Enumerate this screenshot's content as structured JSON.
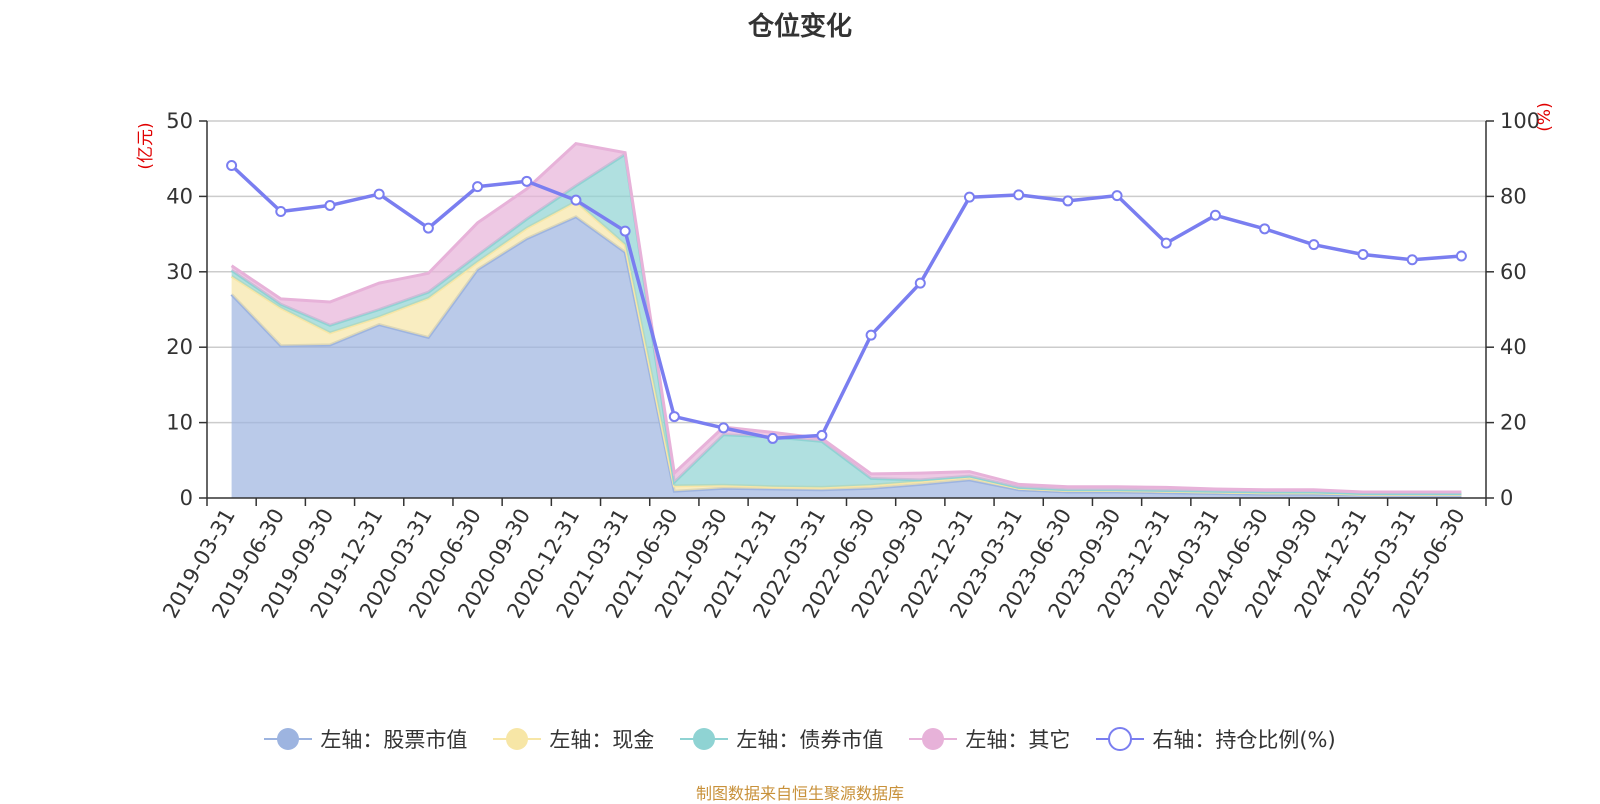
{
  "title": "仓位变化",
  "source_note": "制图数据来自恒生聚源数据库",
  "colors": {
    "stock": "#9db4e0",
    "cash": "#f7e6a6",
    "bond": "#8fd3d3",
    "other": "#e7b2d9",
    "ratio": "#7a7ef0",
    "axis_label": "#e00000"
  },
  "chart_data": {
    "type": "area",
    "title": "仓位变化",
    "x": [
      "2019-03-31",
      "2019-06-30",
      "2019-09-30",
      "2019-12-31",
      "2020-03-31",
      "2020-06-30",
      "2020-09-30",
      "2020-12-31",
      "2021-03-31",
      "2021-06-30",
      "2021-09-30",
      "2021-12-31",
      "2022-03-31",
      "2022-06-30",
      "2022-09-30",
      "2022-12-31",
      "2023-03-31",
      "2023-06-30",
      "2023-09-30",
      "2023-12-31",
      "2024-03-31",
      "2024-06-30",
      "2024-09-30",
      "2024-12-31",
      "2025-03-31",
      "2025-06-30"
    ],
    "left_axis": {
      "label": "(亿元)",
      "ylim": [
        0,
        50
      ],
      "ticks": [
        "0",
        "10",
        "20",
        "30",
        "40",
        "50"
      ]
    },
    "right_axis": {
      "label": "(%)",
      "ylim": [
        0,
        100
      ],
      "ticks": [
        "0",
        "20",
        "40",
        "60",
        "80",
        "100"
      ]
    },
    "grid": true,
    "legend_position": "bottom",
    "series": [
      {
        "name": "左轴：股票市值",
        "axis": "left",
        "stack": true,
        "values": [
          27.0,
          20.2,
          20.3,
          23.0,
          21.3,
          30.3,
          34.4,
          37.3,
          32.6,
          0.9,
          1.3,
          1.2,
          1.1,
          1.3,
          1.8,
          2.4,
          1.1,
          0.8,
          0.8,
          0.7,
          0.6,
          0.5,
          0.5,
          0.4,
          0.4,
          0.4
        ]
      },
      {
        "name": "左轴：现金",
        "axis": "left",
        "stack": true,
        "values": [
          2.4,
          5.0,
          1.6,
          1.0,
          5.2,
          1.0,
          1.4,
          2.0,
          1.0,
          0.7,
          0.4,
          0.3,
          0.3,
          0.4,
          0.4,
          0.4,
          0.2,
          0.2,
          0.2,
          0.2,
          0.2,
          0.2,
          0.2,
          0.1,
          0.1,
          0.1
        ]
      },
      {
        "name": "左轴：债券市值",
        "axis": "left",
        "stack": true,
        "values": [
          0.8,
          0.5,
          1.0,
          1.0,
          0.8,
          0.9,
          1.2,
          2.1,
          12.0,
          0.5,
          6.7,
          6.6,
          6.1,
          0.9,
          0.2,
          0.1,
          0.1,
          0.1,
          0.1,
          0.1,
          0.1,
          0.1,
          0.1,
          0.1,
          0.1,
          0.1
        ]
      },
      {
        "name": "左轴：其它",
        "axis": "left",
        "stack": true,
        "values": [
          0.6,
          0.7,
          3.1,
          3.5,
          2.5,
          4.3,
          4.0,
          5.6,
          0.2,
          1.2,
          1.0,
          0.6,
          0.4,
          0.6,
          0.9,
          0.6,
          0.4,
          0.4,
          0.4,
          0.4,
          0.3,
          0.3,
          0.3,
          0.2,
          0.2,
          0.2
        ]
      },
      {
        "name": "右轴：持仓比例(%)",
        "axis": "right",
        "type": "line",
        "values": [
          88.2,
          76.0,
          77.6,
          80.6,
          71.6,
          82.6,
          84.0,
          79.0,
          70.8,
          21.6,
          18.6,
          15.8,
          16.6,
          43.2,
          57.0,
          79.8,
          80.4,
          78.8,
          80.2,
          67.6,
          75.0,
          71.4,
          67.2,
          64.6,
          63.2,
          64.2
        ]
      }
    ]
  },
  "legend": [
    {
      "label": "左轴：股票市值",
      "key": "stock",
      "shape": "filled"
    },
    {
      "label": "左轴：现金",
      "key": "cash",
      "shape": "filled"
    },
    {
      "label": "左轴：债券市值",
      "key": "bond",
      "shape": "filled"
    },
    {
      "label": "左轴：其它",
      "key": "other",
      "shape": "filled"
    },
    {
      "label": "右轴：持仓比例(%)",
      "key": "ratio",
      "shape": "hollow"
    }
  ]
}
